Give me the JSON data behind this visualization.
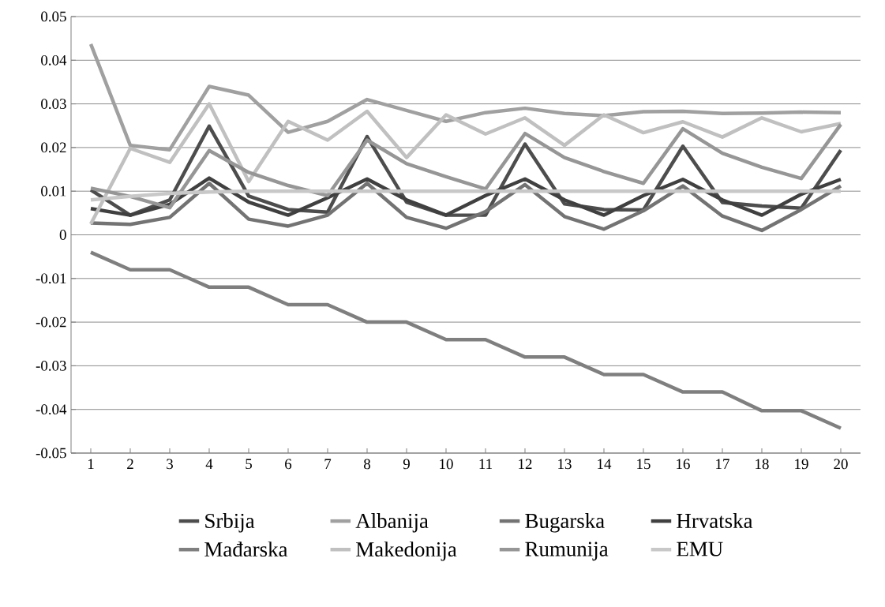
{
  "chart_data": {
    "type": "line",
    "categories": [
      "1",
      "2",
      "3",
      "4",
      "5",
      "6",
      "7",
      "8",
      "9",
      "10",
      "11",
      "12",
      "13",
      "14",
      "15",
      "16",
      "17",
      "18",
      "19",
      "20"
    ],
    "series": [
      {
        "name": "Srbija",
        "color": "#4d4d4d",
        "values": [
          0.0103,
          0.0045,
          0.008,
          0.0249,
          0.0089,
          0.0058,
          0.0052,
          0.0225,
          0.0075,
          0.0045,
          0.0045,
          0.0208,
          0.0071,
          0.0058,
          0.0057,
          0.0203,
          0.0074,
          0.0066,
          0.0061,
          0.0194
        ]
      },
      {
        "name": "Albanija",
        "color": "#a0a0a0",
        "values": [
          0.0437,
          0.0205,
          0.0195,
          0.034,
          0.032,
          0.0235,
          0.026,
          0.031,
          0.0285,
          0.026,
          0.028,
          0.029,
          0.0278,
          0.0273,
          0.0282,
          0.0283,
          0.0278,
          0.0279,
          0.0281,
          0.028
        ]
      },
      {
        "name": "Bugarska",
        "color": "#737373",
        "values": [
          0.0027,
          0.0024,
          0.004,
          0.0118,
          0.0036,
          0.002,
          0.0045,
          0.0118,
          0.004,
          0.0015,
          0.0053,
          0.0115,
          0.0042,
          0.0013,
          0.0055,
          0.0112,
          0.0043,
          0.001,
          0.0058,
          0.0112
        ]
      },
      {
        "name": "Hrvatska",
        "color": "#404040",
        "values": [
          0.006,
          0.0045,
          0.007,
          0.013,
          0.0075,
          0.0045,
          0.0085,
          0.0128,
          0.008,
          0.0045,
          0.009,
          0.0128,
          0.008,
          0.0045,
          0.009,
          0.0127,
          0.008,
          0.0045,
          0.0093,
          0.0127
        ]
      },
      {
        "name": "Mađarska",
        "color": "#7f7f7f",
        "values": [
          -0.004,
          -0.008,
          -0.008,
          -0.012,
          -0.012,
          -0.016,
          -0.016,
          -0.02,
          -0.02,
          -0.024,
          -0.024,
          -0.028,
          -0.028,
          -0.032,
          -0.032,
          -0.036,
          -0.036,
          -0.0403,
          -0.0403,
          -0.0443
        ]
      },
      {
        "name": "Makedonija",
        "color": "#c0c0c0",
        "values": [
          0.0025,
          0.0198,
          0.0166,
          0.03,
          0.0122,
          0.026,
          0.0217,
          0.0283,
          0.0177,
          0.0275,
          0.0231,
          0.0268,
          0.0205,
          0.0275,
          0.0234,
          0.0259,
          0.0224,
          0.0268,
          0.0236,
          0.0255
        ]
      },
      {
        "name": "Rumunija",
        "color": "#969696",
        "values": [
          0.0107,
          0.0088,
          0.0062,
          0.0193,
          0.0143,
          0.0113,
          0.009,
          0.0217,
          0.0163,
          0.0133,
          0.0105,
          0.0232,
          0.0177,
          0.0145,
          0.0118,
          0.0243,
          0.0187,
          0.0155,
          0.0129,
          0.0253
        ]
      },
      {
        "name": "EMU",
        "color": "#c8c8c8",
        "values": [
          0.008,
          0.0088,
          0.0095,
          0.0098,
          0.01,
          0.01,
          0.01,
          0.01,
          0.01,
          0.01,
          0.01,
          0.01,
          0.01,
          0.01,
          0.01,
          0.01,
          0.01,
          0.01,
          0.01,
          0.01
        ]
      }
    ],
    "ylim": [
      -0.05,
      0.05
    ],
    "yticks": [
      -0.05,
      -0.04,
      -0.03,
      -0.02,
      -0.01,
      0,
      0.01,
      0.02,
      0.03,
      0.04,
      0.05
    ],
    "grid": "y",
    "legend": "bottom",
    "marker": "none",
    "line_style": "solid"
  }
}
